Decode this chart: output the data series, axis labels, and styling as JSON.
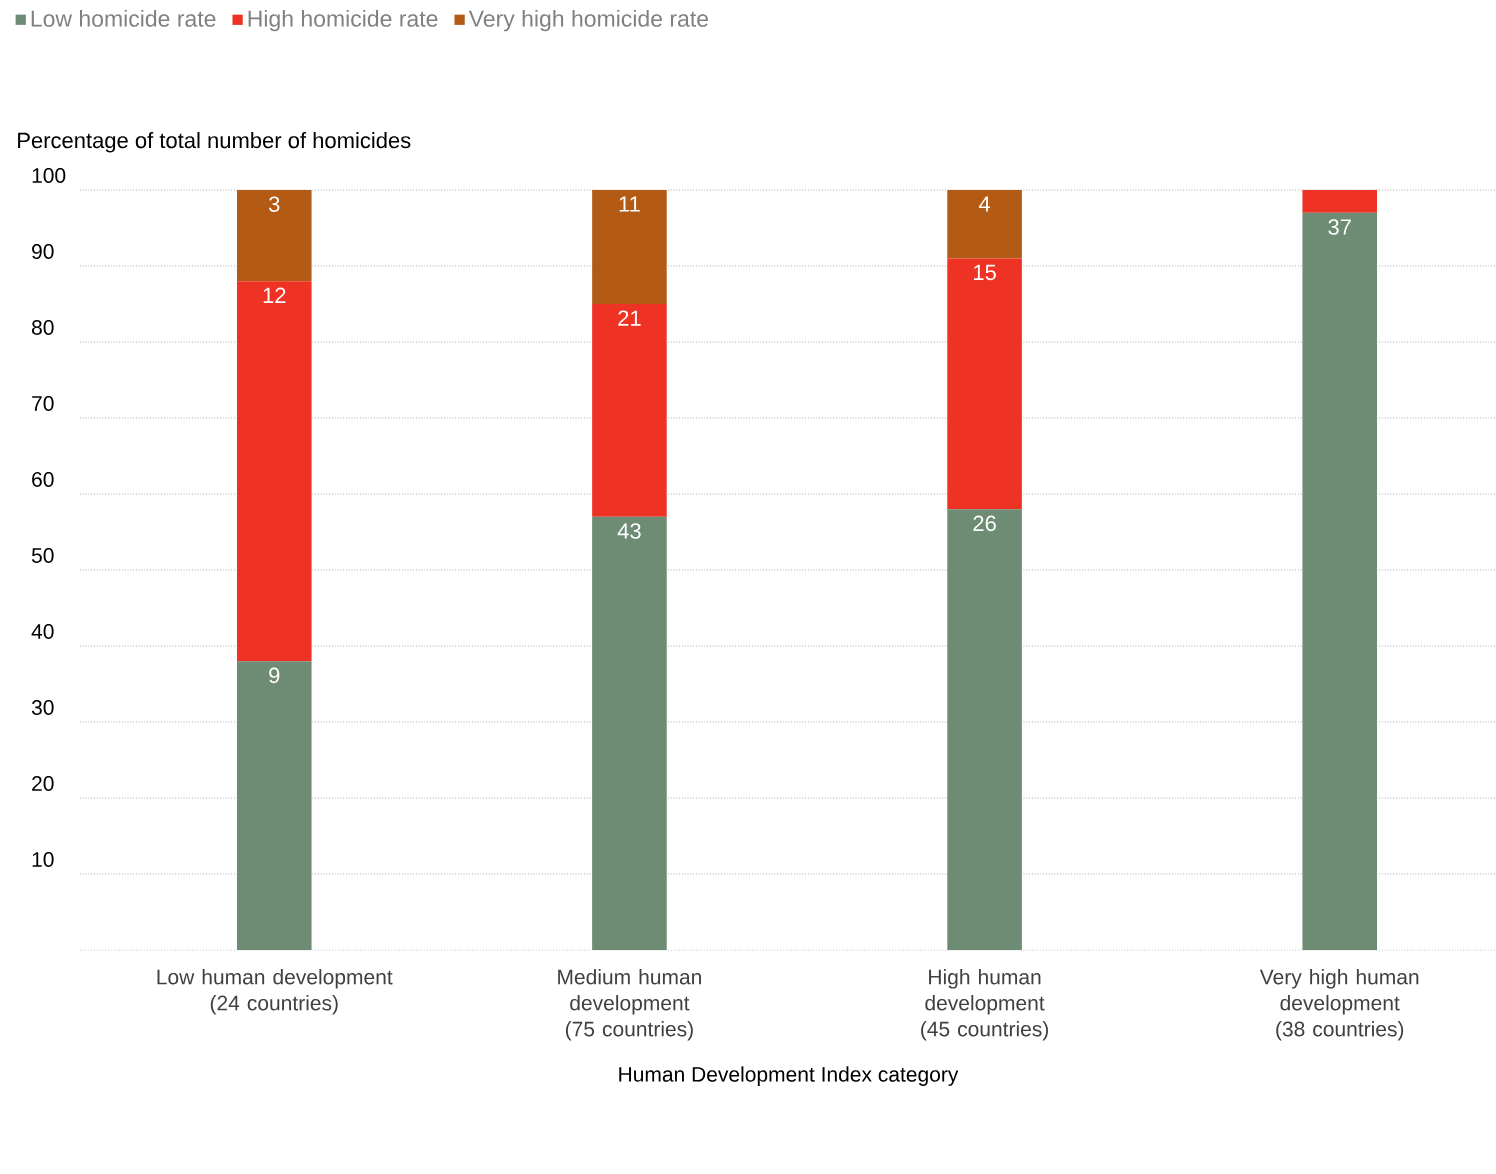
{
  "chart_data": {
    "type": "bar",
    "stacked": true,
    "ylabel": "Percentage of total number of homicides",
    "xlabel": "Human Development Index category",
    "categories": [
      "Low human development (24 countries)",
      "Medium human development (75 countries)",
      "High human development (45 countries)",
      "Very high human development (38 countries)"
    ],
    "series": [
      {
        "name": "Low homicide rate",
        "color": "#6e8b74",
        "values": [
          38,
          57,
          58,
          97
        ]
      },
      {
        "name": "High homicide rate",
        "color": "#ee3224",
        "values": [
          50,
          28,
          33,
          3
        ]
      },
      {
        "name": "Very high homicide rate",
        "color": "#b35a14",
        "values": [
          12,
          15,
          9,
          0
        ]
      }
    ],
    "annotations": [
      {
        "text": "9",
        "x": "Low human development (24 countries)",
        "y": 38
      },
      {
        "text": "43",
        "x": "Medium human development (75 countries)",
        "y": 57
      },
      {
        "text": "26",
        "x": "High human development (45 countries)",
        "y": 58
      },
      {
        "text": "37",
        "x": "Very high human development (38 countries)",
        "y": 97
      },
      {
        "text": "12",
        "x": "Low human development (24 countries)",
        "y": 88
      },
      {
        "text": "21",
        "x": "Medium human development (75 countries)",
        "y": 85
      },
      {
        "text": "15",
        "x": "High human development (45 countries)",
        "y": 91
      },
      {
        "text": "3",
        "x": "Low human development (24 countries)",
        "y": 100
      },
      {
        "text": "11",
        "x": "Medium human development (75 countries)",
        "y": 100
      },
      {
        "text": "4",
        "x": "High human development (45 countries)",
        "y": 100
      }
    ],
    "ylim": [
      0,
      100
    ],
    "yticks": [
      10,
      20,
      30,
      40,
      50,
      60,
      70,
      80,
      90,
      100
    ],
    "grid": "y",
    "legend": "top left"
  }
}
